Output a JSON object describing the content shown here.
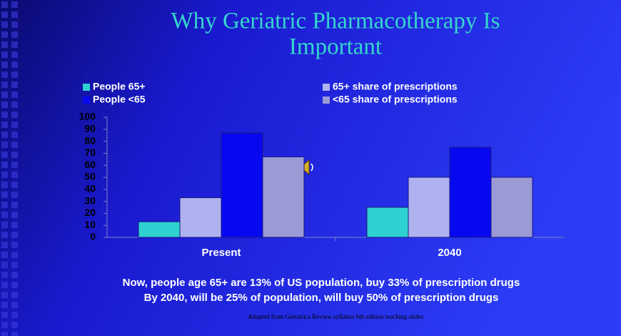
{
  "chart_data": {
    "type": "bar",
    "title": [
      "Why Geriatric Pharmacotherapy Is",
      "Important"
    ],
    "categories": [
      "Present",
      "2040"
    ],
    "series": [
      {
        "name": "People 65+",
        "color": "#2ed1cf",
        "values": [
          13,
          25
        ]
      },
      {
        "name": "65+ share of prescriptions",
        "color": "#aeb2ee",
        "values": [
          33,
          50
        ]
      },
      {
        "name": "People <65",
        "color": "#0808f0",
        "values": [
          87,
          75
        ]
      },
      {
        "name": "<65 share of prescriptions",
        "color": "#9a9ad6",
        "values": [
          67,
          50
        ]
      }
    ],
    "ylim": [
      0,
      100
    ],
    "yticks": [
      0,
      10,
      20,
      30,
      40,
      50,
      60,
      70,
      80,
      90,
      100
    ],
    "grid": false,
    "notes": [
      "Now, people age 65+ are 13% of US population, buy 33% of prescription drugs",
      "By 2040, will be 25% of population, will buy 50% of prescription drugs"
    ],
    "source": "Adapted from Geriatrics Review syllabus 6th edition teaching slides"
  }
}
